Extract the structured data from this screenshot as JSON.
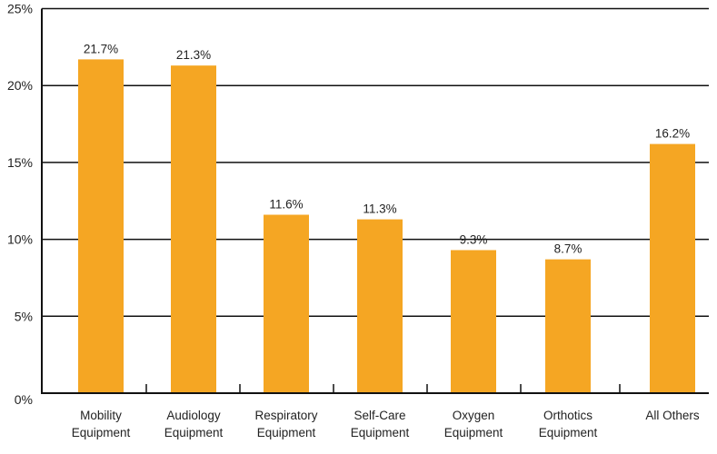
{
  "chart_data": {
    "type": "bar",
    "title": "",
    "xlabel": "",
    "ylabel": "",
    "categories": [
      [
        "Mobility",
        "Equipment"
      ],
      [
        "Audiology",
        "Equipment"
      ],
      [
        "Respiratory",
        "Equipment"
      ],
      [
        "Self-Care",
        "Equipment"
      ],
      [
        "Oxygen",
        "Equipment"
      ],
      [
        "Orthotics",
        "Equipment"
      ],
      [
        "All Others"
      ]
    ],
    "values": [
      21.7,
      21.3,
      11.6,
      11.3,
      9.3,
      8.7,
      16.2
    ],
    "data_labels": [
      "21.7%",
      "21.3%",
      "11.6%",
      "11.3%",
      "9.3%",
      "8.7%",
      "16.2%"
    ],
    "yticks": [
      0,
      5,
      10,
      15,
      20,
      25
    ],
    "ytick_labels": [
      "0%",
      "5%",
      "10%",
      "15%",
      "20%",
      "25%"
    ],
    "ylim": [
      0,
      25
    ],
    "grid": true,
    "legend": "none",
    "colors": {
      "bar": "#F5A623",
      "grid": "#111111"
    }
  }
}
